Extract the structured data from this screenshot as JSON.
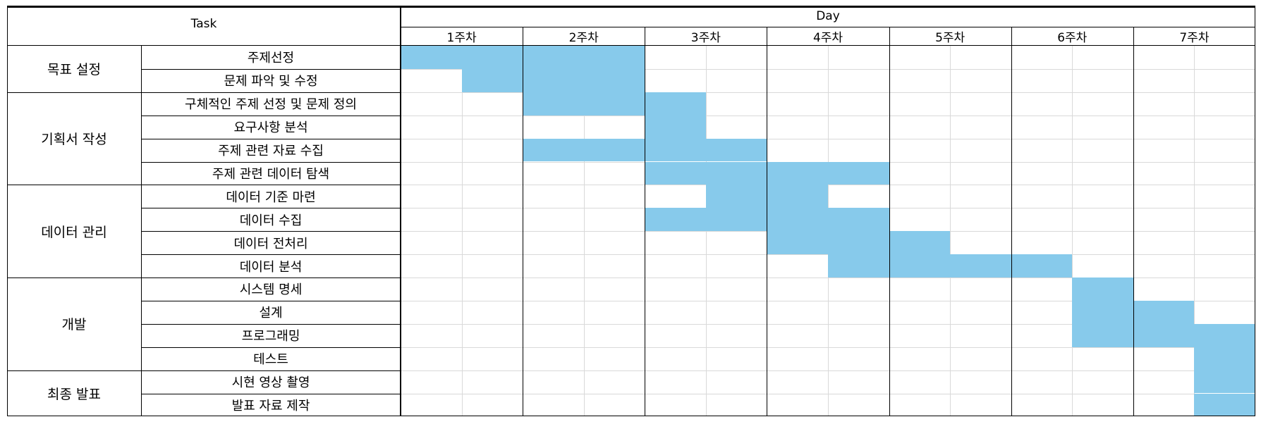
{
  "header": {
    "task_label": "Task",
    "day_label": "Day"
  },
  "weeks": [
    "1주차",
    "2주차",
    "3주차",
    "4주차",
    "5주차",
    "6주차",
    "7주차"
  ],
  "groups": [
    {
      "label": "목표 설정",
      "rows": 2
    },
    {
      "label": "기획서 작성",
      "rows": 4
    },
    {
      "label": "데이터 관리",
      "rows": 4
    },
    {
      "label": "개발",
      "rows": 4
    },
    {
      "label": "최종 발표",
      "rows": 2
    }
  ],
  "tasks": [
    {
      "label": "주제선정",
      "start_half": 0,
      "end_half": 4
    },
    {
      "label": "문제 파악 및 수정",
      "start_half": 1,
      "end_half": 4
    },
    {
      "label": "구체적인 주제 선정 및 문제 정의",
      "start_half": 2,
      "end_half": 5
    },
    {
      "label": "요구사항 분석",
      "start_half": 4,
      "end_half": 5
    },
    {
      "label": "주제 관련 자료 수집",
      "start_half": 2,
      "end_half": 6
    },
    {
      "label": "주제 관련 데이터 탐색",
      "start_half": 4,
      "end_half": 8
    },
    {
      "label": "데이터 기준 마련",
      "start_half": 5,
      "end_half": 7
    },
    {
      "label": "데이터 수집",
      "start_half": 4,
      "end_half": 8
    },
    {
      "label": "데이터 전처리",
      "start_half": 6,
      "end_half": 9
    },
    {
      "label": "데이터 분석",
      "start_half": 7,
      "end_half": 11
    },
    {
      "label": "시스템 명세",
      "start_half": 11,
      "end_half": 12
    },
    {
      "label": "설계",
      "start_half": 11,
      "end_half": 13
    },
    {
      "label": "프로그래밍",
      "start_half": 11,
      "end_half": 14
    },
    {
      "label": "테스트",
      "start_half": 13,
      "end_half": 14
    },
    {
      "label": "시현 영상 촬영",
      "start_half": 13,
      "end_half": 14
    },
    {
      "label": "발표 자료 제작",
      "start_half": 13,
      "end_half": 14
    }
  ],
  "colors": {
    "bar": "#87CAEB",
    "grid": "#d9d9d9",
    "border": "#000000"
  }
}
